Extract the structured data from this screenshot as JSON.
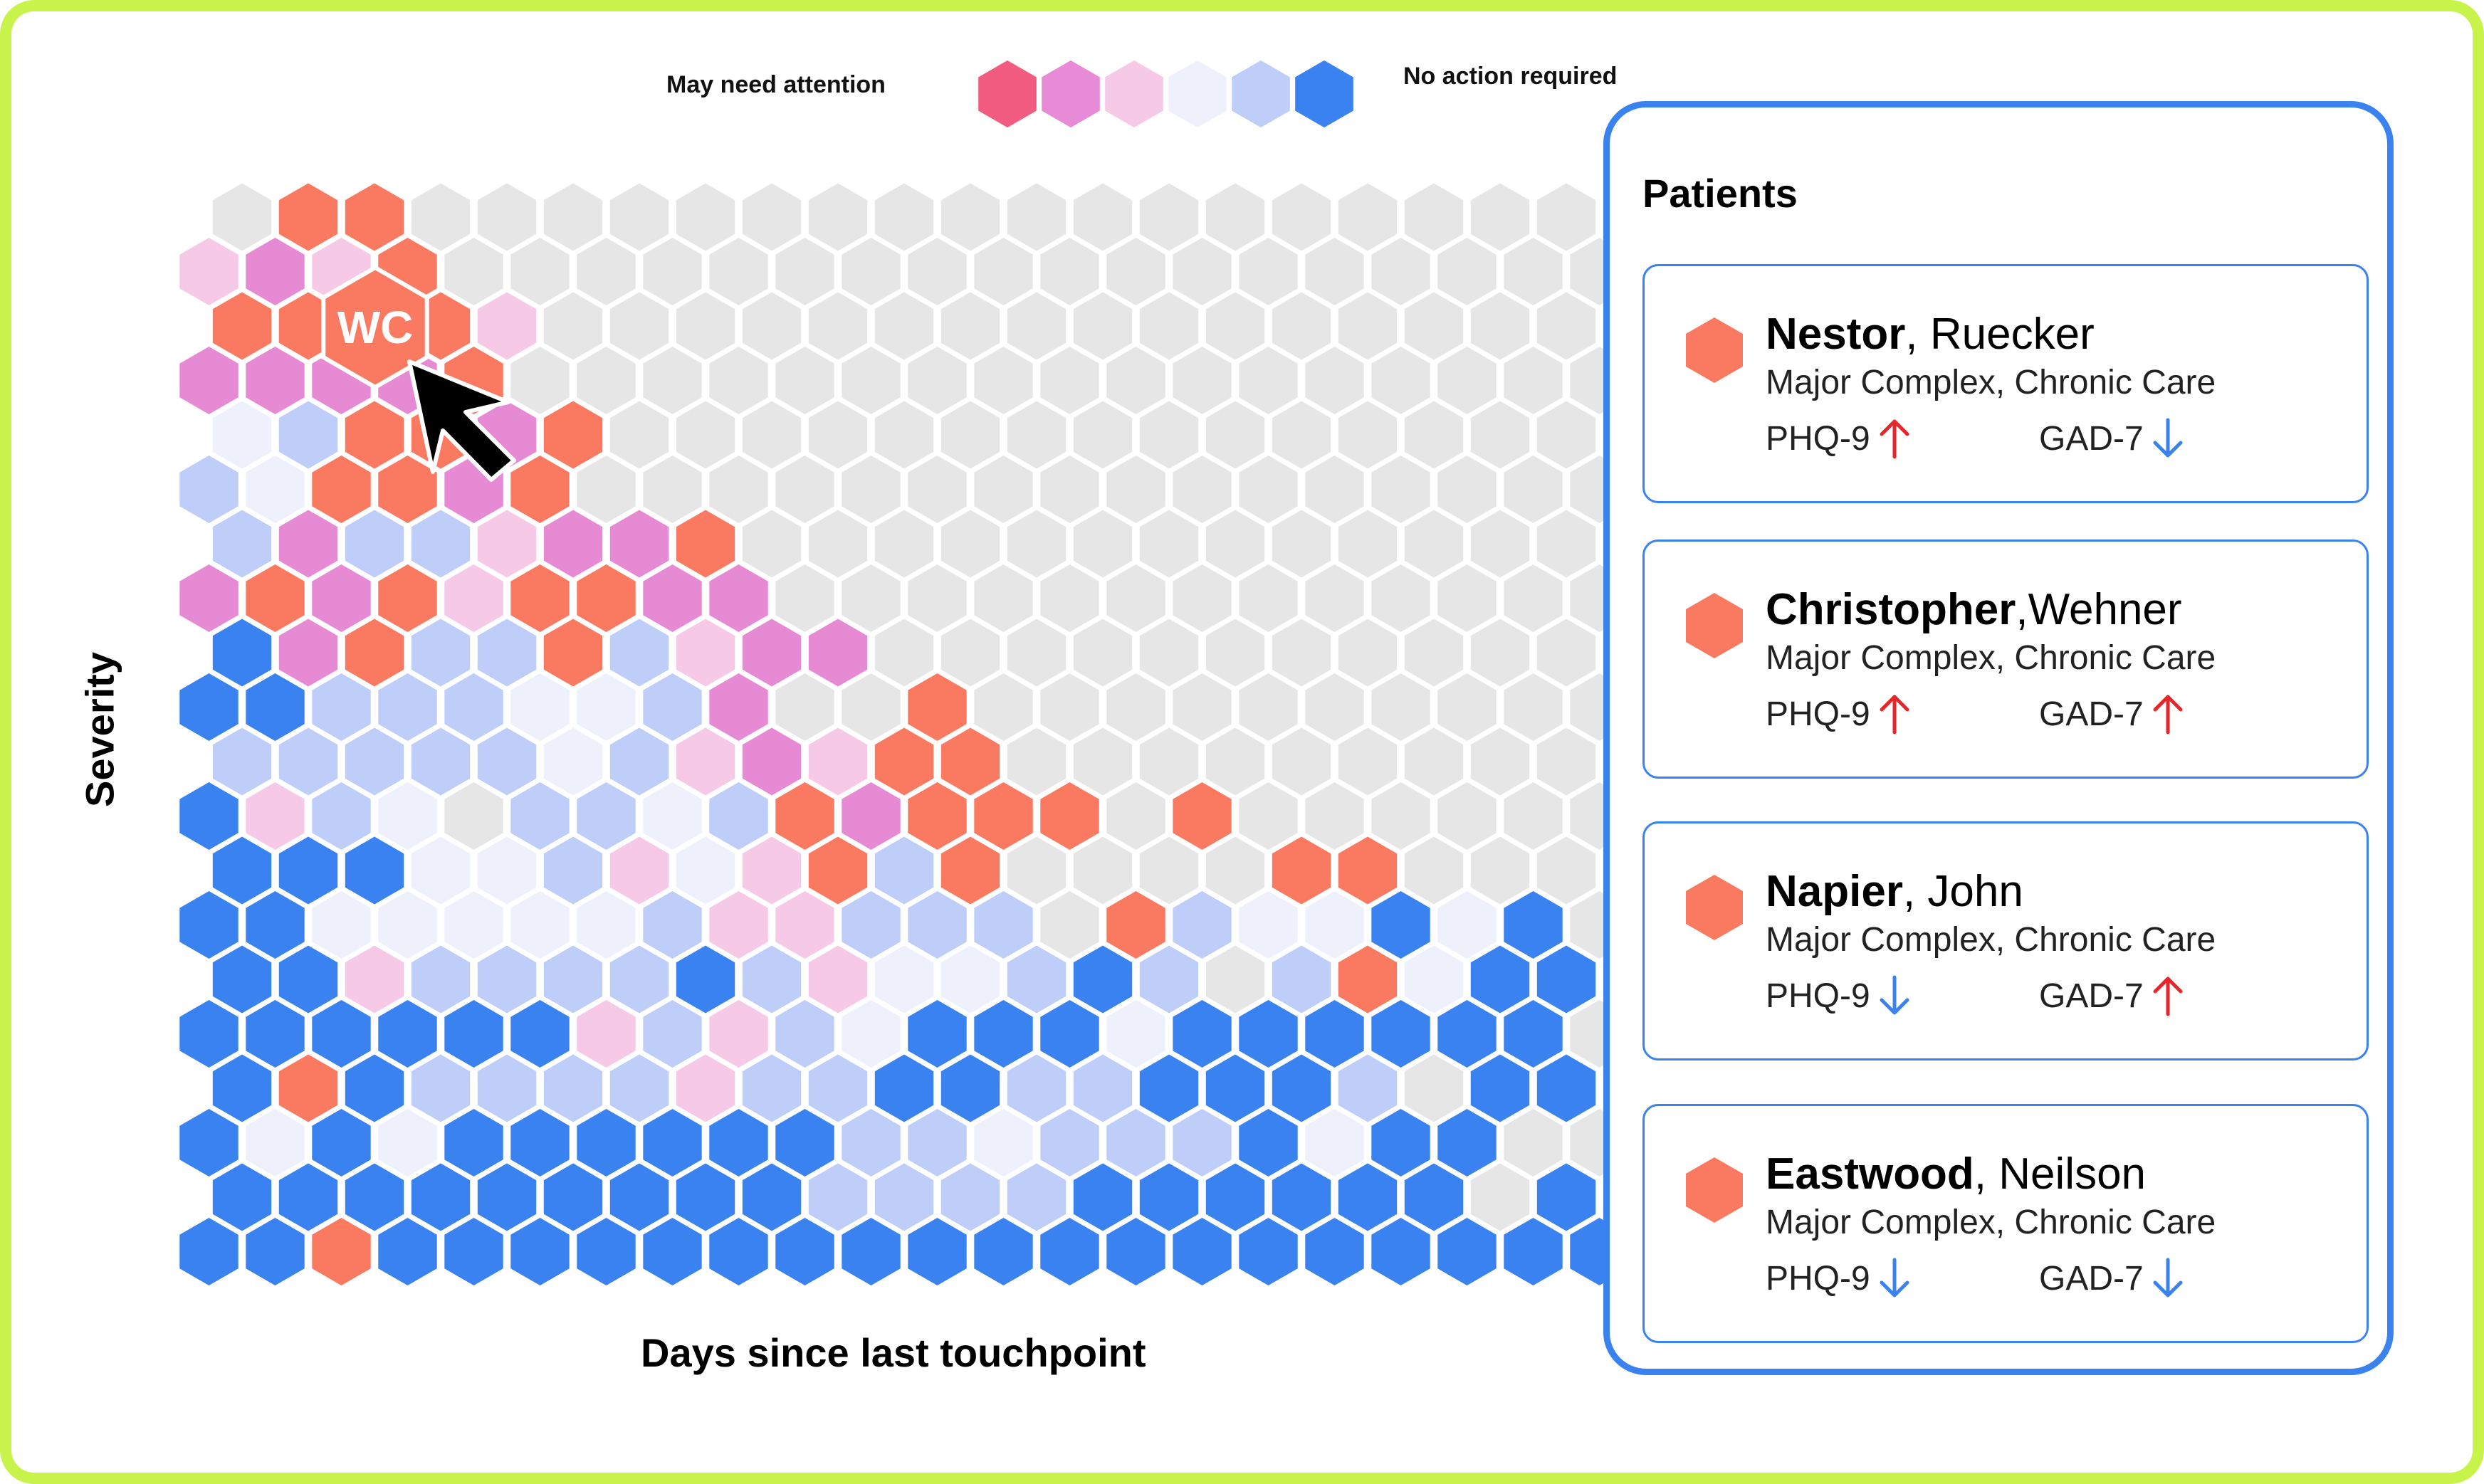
{
  "legend": {
    "left_label": "May need attention",
    "right_label": "No action required",
    "colors": [
      "#f25c80",
      "#e88bd6",
      "#f6c9e6",
      "#eef1fb",
      "#bfcdf9",
      "#3a82ef"
    ]
  },
  "chart": {
    "xlabel": "Days since last touchpoint",
    "ylabel": "Severity",
    "selected_label": "WC",
    "empty_color": "#e6e6e6",
    "palette": {
      "O": "#f97a60",
      "M": "#e68ad4",
      "P": "#f6c9e6",
      "W": "#eef1fb",
      "L": "#bfcdf9",
      "B": "#3a82ef",
      "G": "#e6e6e6"
    },
    "rows": [
      "GOOGGGGGGGGGGGGGGGGGGGGGG",
      "PMPOGGGGGGGGGGGGGGGGGGGGG",
      "OOOOPGGGGGGGGGGGGGGGGGGGG",
      "MMMMOGGGGGGGGGGGGGGGGGGGG",
      "WLOOMOGGGGGGGGGGGGGGGGGGG",
      "LWOOMOGGGGGGGGGGGGGGGGGGG",
      "LMLLPMMOGGGGGGGGGGGGGGGGG",
      "MOMOPOOMMGGGGGGGGGGGGGGGG",
      "BMOLLOLPMMGGGGGGGGGGGGGGG",
      "BBLLLWWLMGGOGGGGGGGGGGGGG",
      "LLLLLWLPMPOOGGGGGGGGGGGGG",
      "BPLWGLLWLOMOOOGOGGGGGGGGG",
      "BBBWWLPWPOLOGGGGOOGGGGGGG",
      "BBWWWWWLPPLLLGOLWWBWBGGGG",
      "BBPLLLLBLPWWLBLGLOWBBGGGG",
      "BBBBBBPLPLWBBBWBBBBBBGGGG",
      "BOBLLLLPLLBBLLBBBLGBBGGGG",
      "BWBWBBBBBBLLWLLLBWBBGGGGG",
      "BBBBBBBBBLLLLBBBBBBGBGGGG",
      "BBOBBBBBBBBBBBBBBBBBBBBGG"
    ]
  },
  "panel": {
    "title": "Patients",
    "patients": [
      {
        "first": "Nestor",
        "sep": ", ",
        "last": "Ruecker",
        "category": "Major Complex, Chronic Care",
        "phq_label": "PHQ-9",
        "phq_trend": "up",
        "gad_label": "GAD-7",
        "gad_trend": "down",
        "selected": false
      },
      {
        "first": "Christopher",
        "sep": ",",
        "last": "Wehner",
        "category": "Major Complex, Chronic Care",
        "phq_label": "PHQ-9",
        "phq_trend": "up",
        "gad_label": "GAD-7",
        "gad_trend": "up",
        "selected": true
      },
      {
        "first": "Napier",
        "sep": ", ",
        "last": "John",
        "category": "Major Complex, Chronic Care",
        "phq_label": "PHQ-9",
        "phq_trend": "down",
        "gad_label": "GAD-7",
        "gad_trend": "up",
        "selected": false
      },
      {
        "first": "Eastwood",
        "sep": ", ",
        "last": "Neilson",
        "category": "Major Complex, Chronic Care",
        "phq_label": "PHQ-9",
        "phq_trend": "down",
        "gad_label": "GAD-7",
        "gad_trend": "down",
        "selected": false
      }
    ],
    "trend_colors": {
      "up": "#e8252b",
      "down": "#3a82ef"
    },
    "dot_color": "#f97a60"
  }
}
